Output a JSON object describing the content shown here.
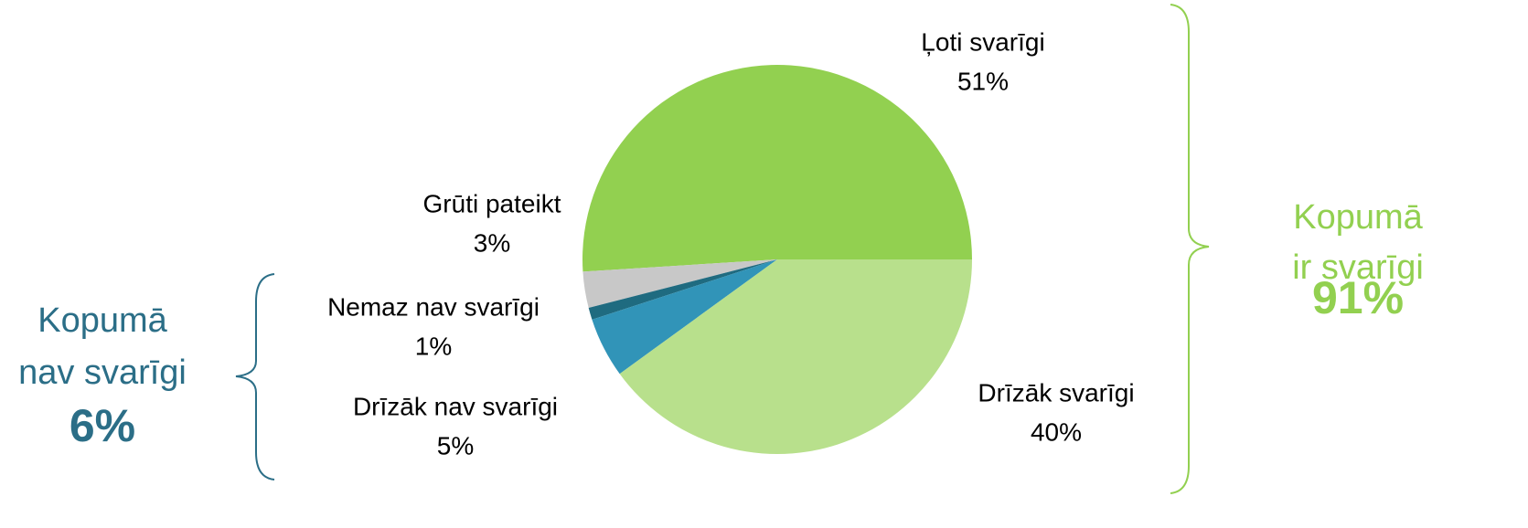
{
  "chart_data": {
    "type": "pie",
    "categories": [
      "Ļoti svarīgi",
      "Grūti pateikt",
      "Nemaz nav svarīgi",
      "Drīzāk nav svarīgi",
      "Drīzāk svarīgi"
    ],
    "values": [
      51,
      3,
      1,
      5,
      40
    ],
    "value_labels": [
      "51%",
      "3%",
      "1%",
      "5%",
      "40%"
    ],
    "colors": [
      "#92d050",
      "#c8c8c8",
      "#1f6b80",
      "#3194b8",
      "#b8e08c"
    ],
    "annotations": [
      {
        "lines": [
          "Kopumā",
          "nav svarīgi"
        ],
        "total": "6%",
        "color": "#2b6e87"
      },
      {
        "lines": [
          "Kopumā",
          "ir svarīgi"
        ],
        "total": "91%",
        "color": "#92d050"
      }
    ]
  }
}
